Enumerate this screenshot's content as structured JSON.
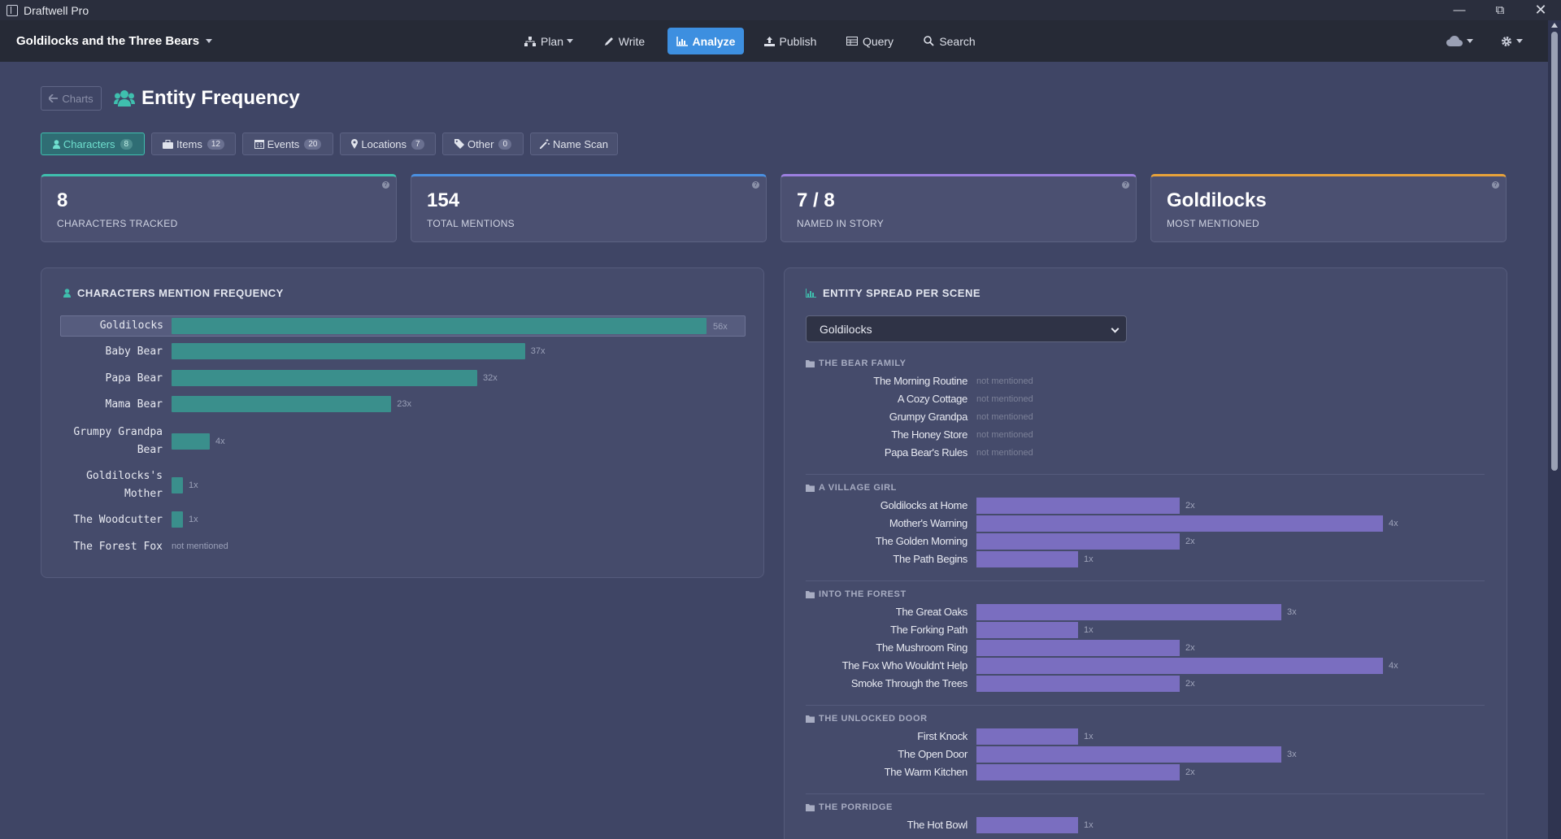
{
  "window": {
    "title": "Draftwell Pro"
  },
  "nav": {
    "doc_title": "Goldilocks and the Three Bears",
    "items": [
      {
        "label": "Plan"
      },
      {
        "label": "Write"
      },
      {
        "label": "Analyze"
      },
      {
        "label": "Publish"
      },
      {
        "label": "Query"
      },
      {
        "label": "Search"
      }
    ]
  },
  "page": {
    "back_label": "Charts",
    "title": "Entity Frequency"
  },
  "tabs": [
    {
      "label": "Characters",
      "count": "8"
    },
    {
      "label": "Items",
      "count": "12"
    },
    {
      "label": "Events",
      "count": "20"
    },
    {
      "label": "Locations",
      "count": "7"
    },
    {
      "label": "Other",
      "count": "0"
    },
    {
      "label": "Name Scan"
    }
  ],
  "stats": [
    {
      "value": "8",
      "label": "CHARACTERS TRACKED",
      "color": "#3fbfae"
    },
    {
      "value": "154",
      "label": "TOTAL MENTIONS",
      "color": "#4a90e2"
    },
    {
      "value": "7 / 8",
      "label": "NAMED IN STORY",
      "color": "#9c7fe0"
    },
    {
      "value": "Goldilocks",
      "label": "MOST MENTIONED",
      "color": "#e8a23a"
    }
  ],
  "frequency": {
    "heading": "CHARACTERS MENTION FREQUENCY",
    "not_mentioned": "not mentioned",
    "rows": [
      {
        "name": "Goldilocks",
        "count": 56,
        "count_label": "56x"
      },
      {
        "name": "Baby Bear",
        "count": 37,
        "count_label": "37x"
      },
      {
        "name": "Papa Bear",
        "count": 32,
        "count_label": "32x"
      },
      {
        "name": "Mama Bear",
        "count": 23,
        "count_label": "23x"
      },
      {
        "name": "Grumpy Grandpa Bear",
        "count": 4,
        "count_label": "4x"
      },
      {
        "name": "Goldilocks's Mother",
        "count": 1,
        "count_label": "1x"
      },
      {
        "name": "The Woodcutter",
        "count": 1,
        "count_label": "1x"
      },
      {
        "name": "The Forest Fox",
        "count": 0,
        "count_label": ""
      }
    ]
  },
  "spread": {
    "heading": "ENTITY SPREAD PER SCENE",
    "selected": "Goldilocks",
    "not_mentioned": "not mentioned",
    "groups": [
      {
        "name": "THE BEAR FAMILY",
        "scenes": [
          {
            "name": "The Morning Routine",
            "count": 0,
            "count_label": ""
          },
          {
            "name": "A Cozy Cottage",
            "count": 0,
            "count_label": ""
          },
          {
            "name": "Grumpy Grandpa",
            "count": 0,
            "count_label": ""
          },
          {
            "name": "The Honey Store",
            "count": 0,
            "count_label": ""
          },
          {
            "name": "Papa Bear's Rules",
            "count": 0,
            "count_label": ""
          }
        ]
      },
      {
        "name": "A VILLAGE GIRL",
        "scenes": [
          {
            "name": "Goldilocks at Home",
            "count": 2,
            "count_label": "2x"
          },
          {
            "name": "Mother's Warning",
            "count": 4,
            "count_label": "4x"
          },
          {
            "name": "The Golden Morning",
            "count": 2,
            "count_label": "2x"
          },
          {
            "name": "The Path Begins",
            "count": 1,
            "count_label": "1x"
          }
        ]
      },
      {
        "name": "INTO THE FOREST",
        "scenes": [
          {
            "name": "The Great Oaks",
            "count": 3,
            "count_label": "3x"
          },
          {
            "name": "The Forking Path",
            "count": 1,
            "count_label": "1x"
          },
          {
            "name": "The Mushroom Ring",
            "count": 2,
            "count_label": "2x"
          },
          {
            "name": "The Fox Who Wouldn't Help",
            "count": 4,
            "count_label": "4x"
          },
          {
            "name": "Smoke Through the Trees",
            "count": 2,
            "count_label": "2x"
          }
        ]
      },
      {
        "name": "THE UNLOCKED DOOR",
        "scenes": [
          {
            "name": "First Knock",
            "count": 1,
            "count_label": "1x"
          },
          {
            "name": "The Open Door",
            "count": 3,
            "count_label": "3x"
          },
          {
            "name": "The Warm Kitchen",
            "count": 2,
            "count_label": "2x"
          }
        ]
      },
      {
        "name": "THE PORRIDGE",
        "scenes": [
          {
            "name": "The Hot Bowl",
            "count": 1,
            "count_label": "1x"
          }
        ]
      }
    ]
  }
}
